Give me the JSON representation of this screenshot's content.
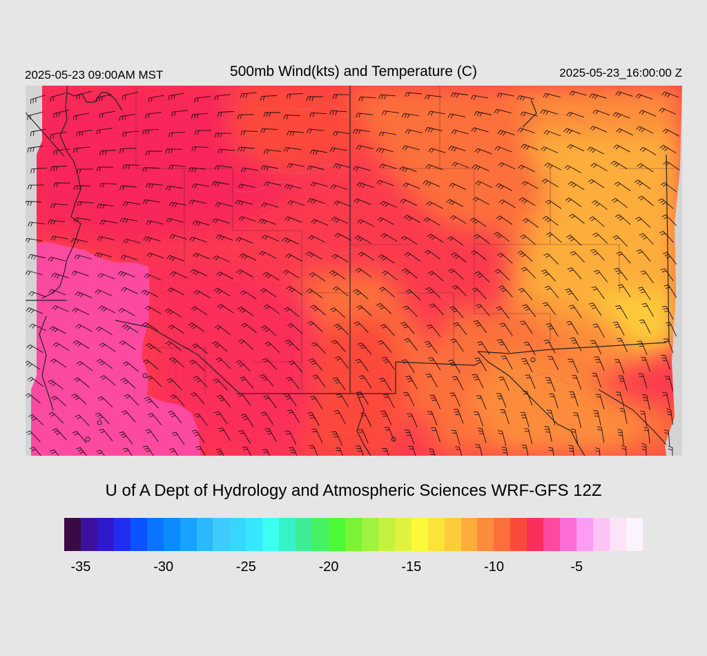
{
  "header": {
    "title": "500mb Wind(kts) and Temperature (C)",
    "valid_local": "2025-05-23 09:00AM MST",
    "valid_utc": "2025-05-23_16:00:00 Z"
  },
  "credit": "U of A Dept of Hydrology and Atmospheric Sciences WRF-GFS 12Z",
  "map": {
    "layers": [
      "temperature-fill",
      "wind-barbs",
      "state-borders",
      "terrain-contours"
    ],
    "background_color": "#d4d4d4"
  },
  "colorbar": {
    "colors": [
      "#3a0a45",
      "#3c11a0",
      "#2f19cd",
      "#1f2ef0",
      "#0d52ff",
      "#0a74ff",
      "#0a8cff",
      "#17a3ff",
      "#2cb7ff",
      "#3fcbff",
      "#37d6ff",
      "#38e6ff",
      "#3cfff2",
      "#35f2c8",
      "#3fec96",
      "#46f264",
      "#4cf936",
      "#7bf236",
      "#9ff23f",
      "#c5f23f",
      "#e0f23f",
      "#fcf83a",
      "#fce33a",
      "#fccc3a",
      "#fcad3a",
      "#fc8c3a",
      "#fc6f3a",
      "#fc4a3a",
      "#fc2e5a",
      "#fc4aa0",
      "#fc6dd6",
      "#fc9cf3",
      "#fcc3f3",
      "#fce3f8",
      "#fcf3fc"
    ],
    "ticks": [
      "-35",
      "-30",
      "-25",
      "-20",
      "-15",
      "-10",
      "-5"
    ]
  }
}
